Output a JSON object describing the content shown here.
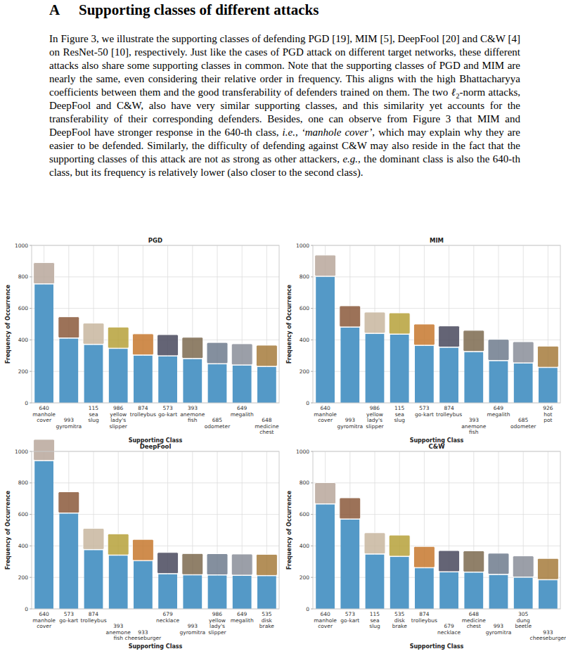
{
  "section": {
    "label": "A",
    "title": "Supporting classes of different attacks"
  },
  "paragraph": [
    {
      "text": "In Figure 3, we illustrate the supporting classes of defending PGD [19], MIM [5], DeepFool [20] and C&W [4] on ResNet-50 [10], respectively. Just like the cases of PGD attack on different target networks, these different attacks also share some supporting classes in common. Note that the supporting classes of PGD and MIM are nearly the same, even considering their relative order in frequency. This aligns with the high Bhattacharyya coefficients between them and the good transferability of defenders trained on them. The two "
    },
    {
      "text": "ℓ",
      "style": "italic"
    },
    {
      "text": "2",
      "style": "sub"
    },
    {
      "text": "-norm attacks, DeepFool and C&W, also have very similar supporting classes, and this similarity yet accounts for the transferability of their corresponding defenders. Besides, one can observe from Figure 3 that MIM and DeepFool have stronger response in the 640-th class, "
    },
    {
      "text": "i.e.,",
      "style": "italic"
    },
    {
      "text": " "
    },
    {
      "text": "‘manhole cover’",
      "style": "italic"
    },
    {
      "text": ", which may explain why they are easier to be defended. Similarly, the difficulty of defending against C&W may also reside in the fact that the supporting classes of this attack are not as strong as other attackers, "
    },
    {
      "text": "e.g.,",
      "style": "italic"
    },
    {
      "text": " the dominant class is also the 640-th class, but its frequency is relatively lower (also closer to the second class)."
    }
  ],
  "chart_data": [
    {
      "type": "bar",
      "title": "PGD",
      "xlabel": "Supporting Class",
      "ylabel": "Frequency of Occurrence",
      "categories": [
        "640\nmanhole\ncover",
        "993\ngyromitra",
        "115\nsea\nslug",
        "986\nyellow\nlady's\nslipper",
        "874\ntrolleybus",
        "573\ngo-kart",
        "393\nanemone\nfish",
        "685\nodometer",
        "649\nmegalith",
        "648\nmedicine\nchest"
      ],
      "values": [
        752,
        408,
        368,
        343,
        300,
        295,
        278,
        245,
        237,
        228
      ],
      "color": "#5499c7",
      "ylim": [
        0,
        1000
      ],
      "yticks": [
        0,
        200,
        400,
        600,
        800,
        1000
      ],
      "grid": true
    },
    {
      "type": "bar",
      "title": "MIM",
      "xlabel": "Supporting Class",
      "ylabel": "Frequency of Occurrence",
      "categories": [
        "640\nmanhole\ncover",
        "993\ngyromitra",
        "986\nyellow\nlady's\nslipper",
        "115\nsea\nslug",
        "573\ngo-kart",
        "874\ntrolleybus",
        "393\nanemone\nfish",
        "649\nmegalith",
        "685\nodometer",
        "926\nhot\npot"
      ],
      "values": [
        800,
        478,
        438,
        433,
        362,
        350,
        322,
        265,
        250,
        222
      ],
      "color": "#5499c7",
      "ylim": [
        0,
        1000
      ],
      "yticks": [
        0,
        200,
        400,
        600,
        800,
        1000
      ],
      "grid": true
    },
    {
      "type": "bar",
      "title": "DeepFool",
      "xlabel": "Supporting Class",
      "ylabel": "Frequency of Occurrence",
      "categories": [
        "640\nmanhole\ncover",
        "573\ngo-kart",
        "874\ntrolleybus",
        "393\nanemone\nfish",
        "933\ncheeseburger",
        "679\nnecklace",
        "993\ngyromitra",
        "986\nyellow\nlady's\nslipper",
        "649\nmegalith",
        "535\ndisk\nbrake"
      ],
      "values": [
        938,
        605,
        373,
        338,
        303,
        220,
        213,
        212,
        210,
        208
      ],
      "color": "#5499c7",
      "ylim": [
        0,
        1000
      ],
      "yticks": [
        0,
        200,
        400,
        600,
        800,
        1000
      ],
      "grid": true
    },
    {
      "type": "bar",
      "title": "C&W",
      "xlabel": "Supporting Class",
      "ylabel": "Frequency of Occurrence",
      "categories": [
        "640\nmanhole\ncover",
        "573\ngo-kart",
        "115\nsea\nslug",
        "535\ndisk\nbrake",
        "874\ntrolleybus",
        "679\nnecklace",
        "648\nmedicine\nchest",
        "993\ngyromitra",
        "305\ndung\nbeetle",
        "933\ncheeseburger"
      ],
      "values": [
        663,
        567,
        345,
        330,
        258,
        232,
        230,
        215,
        198,
        182
      ],
      "color": "#5499c7",
      "ylim": [
        0,
        1000
      ],
      "yticks": [
        0,
        200,
        400,
        600,
        800,
        1000
      ],
      "grid": true
    }
  ]
}
